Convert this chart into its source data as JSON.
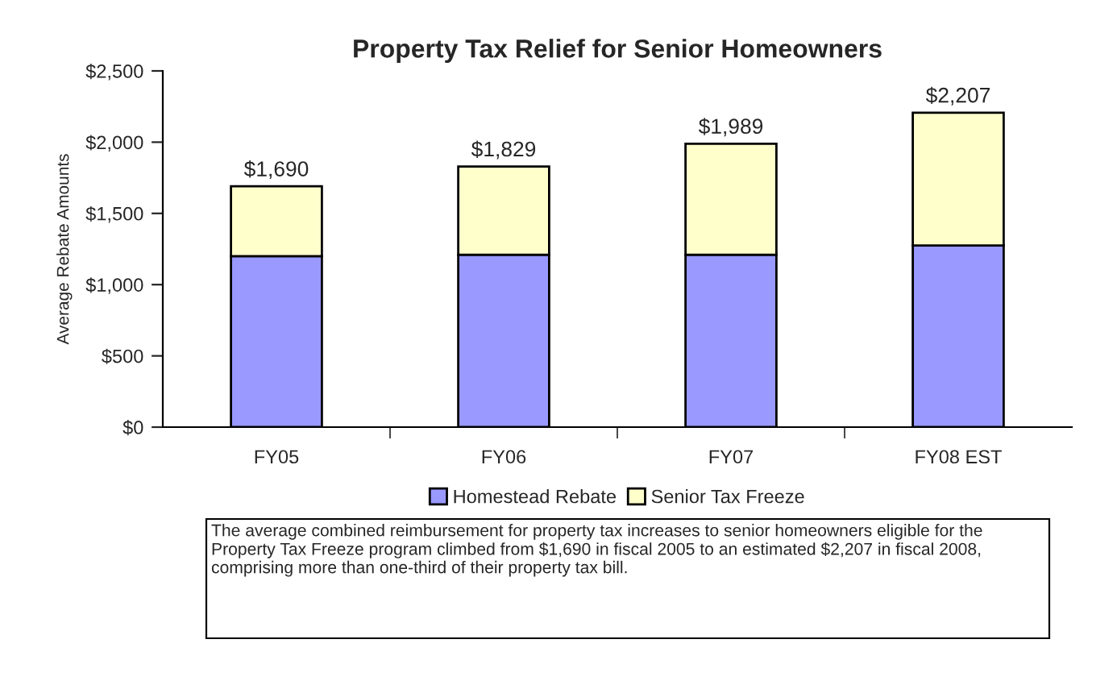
{
  "chart_data": {
    "type": "bar",
    "title": "Property Tax Relief for Senior Homeowners",
    "ylabel": "Average Rebate Amounts",
    "categories": [
      "FY05",
      "FY06",
      "FY07",
      "FY08 EST"
    ],
    "stacked": true,
    "series": [
      {
        "name": "Homestead Rebate",
        "color": "#9999ff",
        "values": [
          1200,
          1210,
          1210,
          1275
        ]
      },
      {
        "name": "Senior Tax Freeze",
        "color": "#ffffcc",
        "values": [
          490,
          619,
          779,
          932
        ]
      }
    ],
    "totals": [
      "$1,690",
      "$1,829",
      "$1,989",
      "$2,207"
    ],
    "ylim": [
      0,
      2500
    ],
    "yticks": [
      {
        "value": 0,
        "label": "$0"
      },
      {
        "value": 500,
        "label": "$500"
      },
      {
        "value": 1000,
        "label": "$1,000"
      },
      {
        "value": 1500,
        "label": "$1,500"
      },
      {
        "value": 2000,
        "label": "$2,000"
      },
      {
        "value": 2500,
        "label": "$2,500"
      }
    ],
    "grid": false,
    "legend": "bottom",
    "annotations": [
      "The average combined reimbursement for property tax increases to senior homeowners eligible for the Property Tax Freeze program climbed from $1,690 in fiscal 2005 to an estimated $2,207 in fiscal 2008, comprising more than one-third of their property tax bill."
    ]
  }
}
